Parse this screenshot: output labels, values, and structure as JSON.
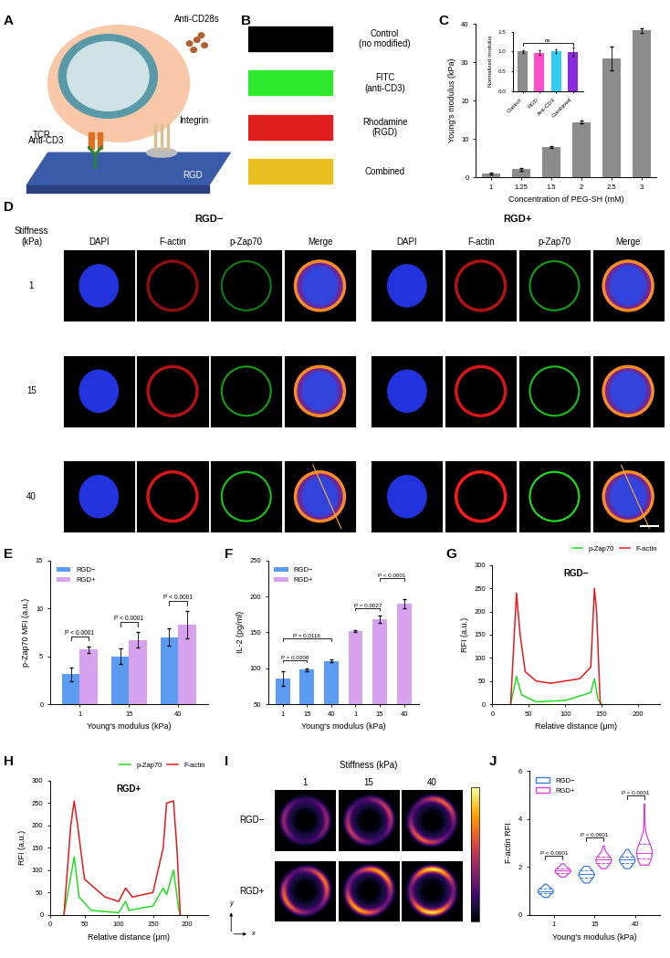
{
  "panel_labels": [
    "A",
    "B",
    "C",
    "D",
    "E",
    "F",
    "G",
    "H",
    "I",
    "J"
  ],
  "diagram": {
    "labels": {
      "anti_cd28s": "Anti-CD28s",
      "tcr": "TCR",
      "integrin": "Integrin",
      "anti_cd3": "Anti-CD3",
      "rgd": "RGD"
    }
  },
  "substrates": {
    "rows": [
      {
        "lines": [
          "Control",
          "(no modified)"
        ],
        "color": "#000000"
      },
      {
        "lines": [
          "FITC",
          "(anti-CD3)"
        ],
        "color": "#2ee82e"
      },
      {
        "lines": [
          "Rhodamine",
          "(RGD)"
        ],
        "color": "#e01e1e"
      },
      {
        "lines": [
          "Combined"
        ],
        "color": "#e8c020"
      }
    ]
  },
  "microscopy": {
    "groups": [
      "RGD−",
      "RGD+"
    ],
    "channels": [
      "DAPI",
      "F-actin",
      "p-Zap70",
      "Merge"
    ],
    "row_header": [
      "Stiffness",
      "(kPa)"
    ],
    "rows": [
      "1",
      "15",
      "40"
    ]
  },
  "heatmaps": {
    "title": "Stiffness (kPa)",
    "columns": [
      "1",
      "15",
      "40"
    ],
    "rows": [
      "RGD−",
      "RGD+"
    ],
    "axes": [
      "y",
      "x"
    ]
  },
  "chart_data": [
    {
      "type": "bar",
      "categories": [
        "1",
        "1.25",
        "1.5",
        "2",
        "2.5",
        "3"
      ],
      "values": [
        0.9,
        2.1,
        7.9,
        14.4,
        31.0,
        38.3
      ],
      "errors": [
        0.2,
        0.3,
        0.2,
        0.4,
        3.0,
        0.6
      ],
      "color": "#8c8c8c",
      "xlabel": "Concentration of PEG-SH (mM)",
      "ylabel": "Young's modulus (kPa)",
      "ylim": [
        0,
        40
      ],
      "yticks": [
        0,
        10,
        20,
        30,
        40
      ],
      "inset": {
        "type": "bar",
        "categories": [
          "Control",
          "RGD",
          "Anti-CD3",
          "Combined"
        ],
        "values": [
          1.0,
          0.97,
          1.01,
          0.99
        ],
        "errors": [
          0.03,
          0.06,
          0.05,
          0.1
        ],
        "colors": [
          "#8c8c8c",
          "#ff4fc8",
          "#33ccee",
          "#8a2be2"
        ],
        "ylabel": "Normalized modulus",
        "ylim": [
          0,
          1.5
        ],
        "yticks": [
          {
            "value": 0,
            "label": "0.0"
          },
          {
            "value": 0.5,
            "label": "0.5"
          },
          {
            "value": 1.0,
            "label": "1.0"
          },
          {
            "value": 1.5,
            "label": "1.5"
          }
        ],
        "annotation": "ns"
      }
    },
    {
      "type": "bar",
      "categories": [
        "1",
        "15",
        "40"
      ],
      "series": [
        {
          "name": "RGD−",
          "color": "#5b9bf0",
          "values": [
            3.1,
            5.0,
            7.0
          ],
          "errors": [
            0.7,
            0.8,
            0.9
          ]
        },
        {
          "name": "RGD+",
          "color": "#d6a2f0",
          "values": [
            5.7,
            6.7,
            8.3
          ],
          "errors": [
            0.35,
            0.8,
            1.4
          ]
        }
      ],
      "xlabel": "Young's modulus (kPa)",
      "ylabel": "p-Zap70 MFI (a.u.)",
      "ylim": [
        0,
        15
      ],
      "yticks": [
        0,
        5,
        10,
        15
      ],
      "legend": "upper left",
      "comparisons": [
        {
          "category": "1",
          "label": "P < 0.0001"
        },
        {
          "category": "15",
          "label": "P < 0.0001"
        },
        {
          "category": "40",
          "label": "P < 0.0001"
        }
      ]
    },
    {
      "type": "bar",
      "categories": [
        "1",
        "15",
        "40"
      ],
      "series": [
        {
          "name": "RGD−",
          "color": "#5b9bf0",
          "values": [
            86,
            98,
            110
          ],
          "errors": [
            10,
            2,
            2
          ]
        },
        {
          "name": "RGD+",
          "color": "#d6a2f0",
          "values": [
            152,
            168,
            190
          ],
          "errors": [
            1,
            5,
            6
          ]
        }
      ],
      "xlabel": "Young's modulus (kPa)",
      "ylabel": "IL-2 (pg/ml)",
      "ylim": [
        50,
        250
      ],
      "yticks": [
        50,
        100,
        150,
        200,
        250
      ],
      "legend": "upper left",
      "comparisons": [
        {
          "series": "RGD−",
          "between": [
            "1",
            "15"
          ],
          "label": "P = 0.0208"
        },
        {
          "series": "RGD−",
          "between": [
            "1",
            "40"
          ],
          "label": "P = 0.0116"
        },
        {
          "series": "RGD+",
          "between": [
            "1",
            "15"
          ],
          "label": "P = 0.0027"
        },
        {
          "series": "RGD+",
          "between": [
            "15",
            "40"
          ],
          "label": "P < 0.0001"
        }
      ]
    },
    {
      "type": "line",
      "title": "RGD−",
      "xlabel": "Relative distance (μm)",
      "ylabel": "RFI (a.u.)",
      "xlim": [
        0,
        230
      ],
      "xticks": [
        0,
        50,
        100,
        150,
        200
      ],
      "ylim": [
        0,
        300
      ],
      "yticks": [
        0,
        50,
        100,
        150,
        200,
        250,
        300
      ],
      "legend": "upper right",
      "series": [
        {
          "name": "p-Zap70",
          "color": "#22dd22",
          "x": [
            25,
            33,
            40,
            60,
            100,
            135,
            140,
            145,
            150
          ],
          "values": [
            0,
            60,
            20,
            5,
            8,
            25,
            55,
            10,
            0
          ]
        },
        {
          "name": "F-actin",
          "color": "#e41a1c",
          "x": [
            25,
            30,
            33,
            38,
            45,
            60,
            80,
            100,
            120,
            135,
            140,
            143,
            148
          ],
          "values": [
            0,
            150,
            240,
            150,
            70,
            50,
            45,
            50,
            55,
            80,
            250,
            200,
            0
          ]
        }
      ]
    },
    {
      "type": "line",
      "title": "RGD+",
      "xlabel": "Relative distance (μm)",
      "ylabel": "RFI (a.u.)",
      "xlim": [
        0,
        230
      ],
      "xticks": [
        0,
        50,
        100,
        150,
        200
      ],
      "ylim": [
        0,
        300
      ],
      "yticks": [
        0,
        50,
        100,
        150,
        200,
        250,
        300
      ],
      "legend": "upper right",
      "series": [
        {
          "name": "p-Zap70",
          "color": "#22dd22",
          "x": [
            20,
            35,
            42,
            60,
            100,
            110,
            115,
            150,
            165,
            170,
            180,
            188,
            190
          ],
          "values": [
            0,
            130,
            40,
            10,
            5,
            30,
            10,
            20,
            60,
            45,
            100,
            10,
            0
          ]
        },
        {
          "name": "F-actin",
          "color": "#e41a1c",
          "x": [
            20,
            30,
            35,
            40,
            50,
            80,
            100,
            110,
            120,
            150,
            165,
            170,
            180,
            185,
            190
          ],
          "values": [
            0,
            200,
            255,
            200,
            80,
            40,
            30,
            60,
            40,
            50,
            150,
            250,
            255,
            150,
            0
          ]
        }
      ]
    },
    {
      "type": "violin",
      "categories": [
        "1",
        "15",
        "40"
      ],
      "xlabel": "Young's modulus (kPa)",
      "ylabel": "F-actin RFI",
      "ylim": [
        0,
        6
      ],
      "yticks": [
        0,
        2,
        4,
        6
      ],
      "legend": "upper left",
      "series": [
        {
          "name": "RGD−",
          "color": "#3a7de0",
          "min": [
            0.75,
            1.35,
            1.95
          ],
          "q1": [
            0.9,
            1.55,
            2.15
          ],
          "median": [
            1.0,
            1.7,
            2.3
          ],
          "q3": [
            1.1,
            1.85,
            2.45
          ],
          "max": [
            1.3,
            2.05,
            2.75
          ]
        },
        {
          "name": "RGD+",
          "color": "#e03ae0",
          "min": [
            1.6,
            1.95,
            2.1
          ],
          "q1": [
            1.75,
            2.15,
            2.35
          ],
          "median": [
            1.85,
            2.3,
            2.6
          ],
          "q3": [
            1.95,
            2.45,
            2.95
          ],
          "max": [
            2.15,
            2.9,
            4.65
          ]
        }
      ],
      "comparisons": [
        {
          "category": "1",
          "label": "P < 0.0001"
        },
        {
          "category": "15",
          "label": "P < 0.0001"
        },
        {
          "category": "40",
          "label": "P < 0.0001"
        }
      ]
    }
  ]
}
